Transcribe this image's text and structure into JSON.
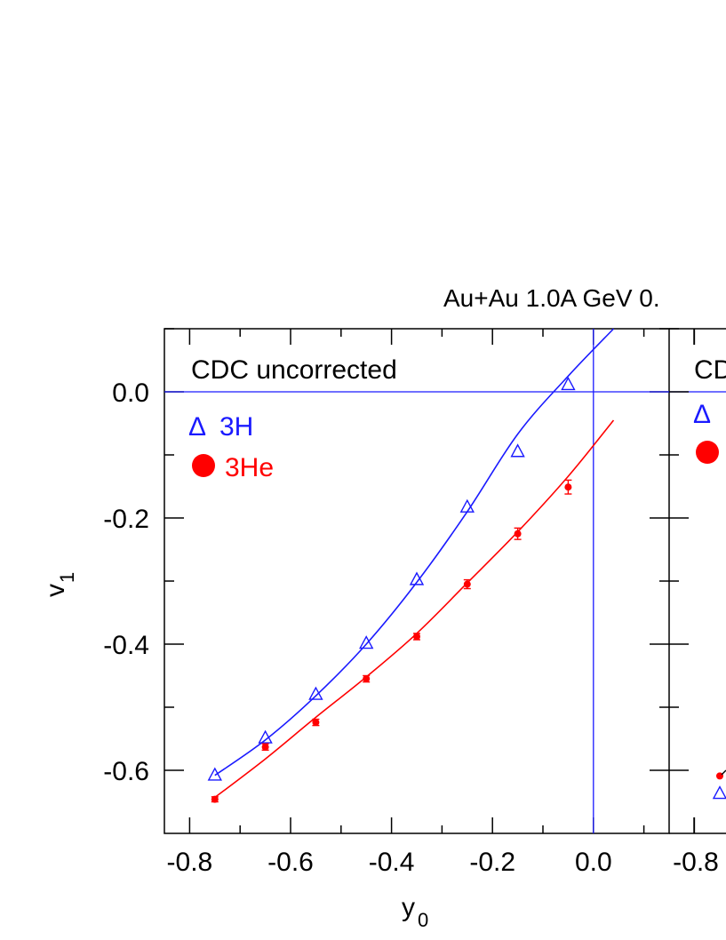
{
  "chart_data": {
    "type": "scatter",
    "title": "Au+Au 1.0A GeV 0.",
    "xlabel": "y",
    "xlabel_sub": "0",
    "ylabel": "v",
    "ylabel_sub": "1",
    "xlim": [
      -0.85,
      0.15
    ],
    "ylim": [
      -0.7,
      0.1
    ],
    "xticks": [
      "-0.8",
      "-0.6",
      "-0.4",
      "-0.2",
      "0.0"
    ],
    "xticks_right": [
      "-0.8"
    ],
    "yticks": [
      "0.0",
      "-0.2",
      "-0.4",
      "-0.6"
    ],
    "grid": false,
    "reference_lines": {
      "y": 0.0,
      "x": 0.0
    },
    "legend_position": "top-left",
    "panel_label": "CDC uncorrected",
    "right_panel_label": "CD",
    "legend": [
      {
        "symbol": "Δ",
        "text": "3H",
        "color": "#1a1aff"
      },
      {
        "symbol": "●",
        "text": "3He",
        "color": "#ff0000"
      }
    ],
    "series": [
      {
        "name": "3H",
        "marker": "open-triangle",
        "color": "#1a1aff",
        "x": [
          -0.75,
          -0.65,
          -0.55,
          -0.45,
          -0.35,
          -0.25,
          -0.15,
          -0.05
        ],
        "y": [
          -0.607,
          -0.548,
          -0.479,
          -0.398,
          -0.297,
          -0.182,
          -0.094,
          0.012
        ],
        "fit": [
          [
            -0.75,
            -0.608
          ],
          [
            -0.65,
            -0.552
          ],
          [
            -0.55,
            -0.482
          ],
          [
            -0.45,
            -0.4
          ],
          [
            -0.35,
            -0.302
          ],
          [
            -0.25,
            -0.19
          ],
          [
            -0.15,
            -0.067
          ],
          [
            -0.05,
            0.025
          ],
          [
            0.04,
            0.1
          ]
        ]
      },
      {
        "name": "3He",
        "marker": "filled-circle",
        "color": "#ff0000",
        "x": [
          -0.75,
          -0.65,
          -0.55,
          -0.45,
          -0.35,
          -0.25,
          -0.15,
          -0.05
        ],
        "y": [
          -0.646,
          -0.563,
          -0.524,
          -0.455,
          -0.388,
          -0.305,
          -0.225,
          -0.151
        ],
        "yerr": [
          0.004,
          0.005,
          0.005,
          0.005,
          0.005,
          0.007,
          0.009,
          0.011
        ],
        "fit": [
          [
            -0.75,
            -0.643
          ],
          [
            -0.65,
            -0.582
          ],
          [
            -0.55,
            -0.516
          ],
          [
            -0.45,
            -0.452
          ],
          [
            -0.35,
            -0.383
          ],
          [
            -0.25,
            -0.303
          ],
          [
            -0.15,
            -0.222
          ],
          [
            -0.05,
            -0.134
          ],
          [
            0.04,
            -0.045
          ]
        ]
      }
    ],
    "right_panel_points": [
      {
        "name": "3H",
        "x": -0.82,
        "y": -0.636
      },
      {
        "name": "3He",
        "x": -0.82,
        "y": -0.609
      }
    ]
  }
}
